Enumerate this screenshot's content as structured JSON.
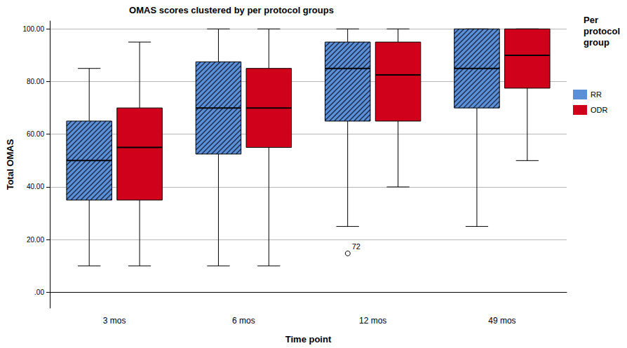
{
  "chart_data": {
    "type": "boxplot",
    "title": "OMAS scores clustered by per protocol groups",
    "x_label": "Time point",
    "y_label": "Total OMAS",
    "legend_title": "Per protocol group",
    "categories": [
      "3 mos",
      "6 mos",
      "12 mos",
      "49 mos"
    ],
    "series": [
      {
        "name": "RR",
        "color": "#5b8fd6",
        "values": [
          [
            10,
            35,
            50,
            65,
            85
          ],
          [
            10,
            52.5,
            70,
            87.5,
            100
          ],
          [
            25,
            65,
            85,
            95,
            100
          ],
          [
            25,
            70,
            85,
            100,
            100
          ]
        ]
      },
      {
        "name": "ODR",
        "color": "#d0021b",
        "values": [
          [
            10,
            35,
            55,
            70,
            95
          ],
          [
            10,
            55,
            70,
            85,
            100
          ],
          [
            40,
            65,
            82.5,
            95,
            100
          ],
          [
            50,
            77.5,
            90,
            100,
            100
          ]
        ]
      }
    ],
    "outliers": [
      {
        "series": "RR",
        "category": "12 mos",
        "value": 15,
        "label": "72"
      }
    ],
    "ylim": [
      -6,
      103
    ],
    "yticks": [
      {
        "value": 0,
        "label": ".00"
      },
      {
        "value": 20,
        "label": "20.00"
      },
      {
        "value": 40,
        "label": "40.00"
      },
      {
        "value": 60,
        "label": "60.00"
      },
      {
        "value": 80,
        "label": "80.00"
      },
      {
        "value": 100,
        "label": "100.00"
      }
    ],
    "grid": true,
    "legend": "right"
  }
}
